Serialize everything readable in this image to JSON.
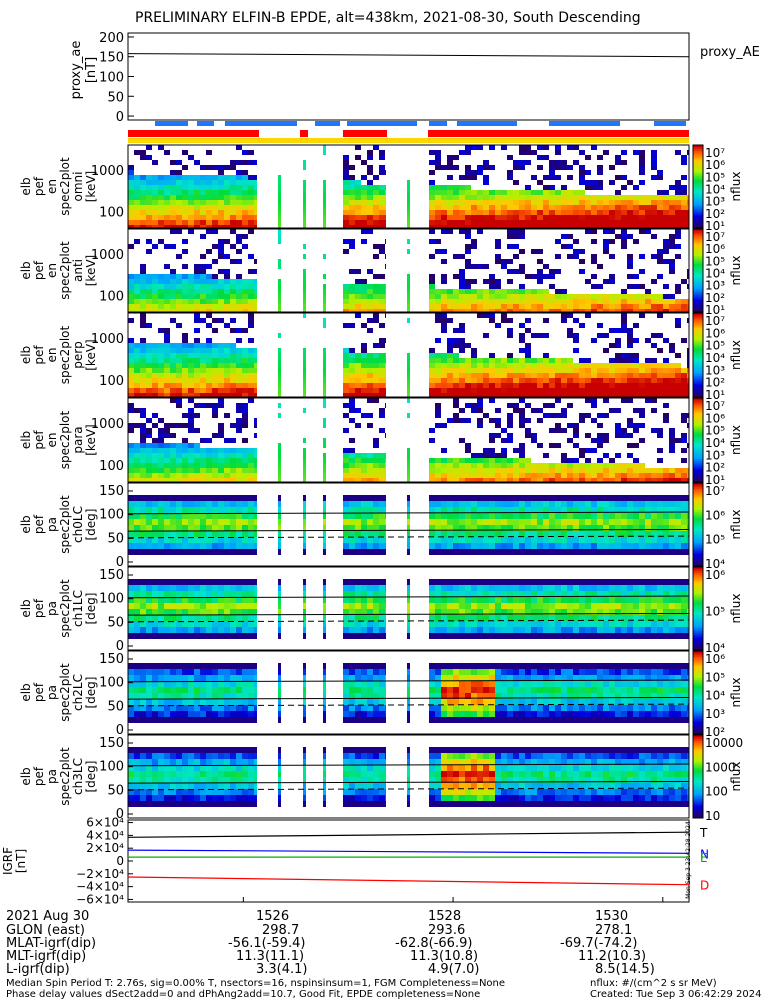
{
  "title": "PRELIMINARY ELFIN-B EPDE, alt=438km, 2021-08-30, South Descending",
  "colors": {
    "ae_line": "#000000",
    "igrf_T": "#000000",
    "igrf_N": "#0000ff",
    "igrf_E": "#00b000",
    "igrf_D": "#ff0000",
    "bar_blue": "#1f77ff",
    "bar_red": "#ff0000",
    "bar_yellow": "#ffd700"
  },
  "side_text": "Mon Sep 3 23:42:28 2024",
  "chart_data": [
    {
      "type": "line",
      "panel": "proxy_ae",
      "ylabel": [
        "proxy_ae",
        "[nT]"
      ],
      "legend": "proxy_AE",
      "ylim": [
        -10,
        210
      ],
      "yticks": [
        "200",
        "150",
        "100",
        "50",
        "0"
      ],
      "x": [
        1524.9,
        1530.25
      ],
      "values": [
        158,
        150
      ]
    },
    {
      "type": "heatmap",
      "panel": "energy-omni",
      "ylabel": [
        "elb",
        "pef",
        "en",
        "spec2plot",
        "omni",
        "[keV]"
      ],
      "yscale": "log",
      "yticks": [
        "1000",
        "100"
      ],
      "colorbar": {
        "label": "nflux",
        "ticks": [
          "10⁷",
          "10⁶",
          "10⁵",
          "10⁴",
          "10³",
          "10²",
          "10¹"
        ]
      }
    },
    {
      "type": "heatmap",
      "panel": "energy-anti",
      "ylabel": [
        "elb",
        "pef",
        "en",
        "spec2plot",
        "anti",
        "[keV]"
      ],
      "yscale": "log",
      "yticks": [
        "1000",
        "100"
      ],
      "colorbar": {
        "label": "nflux",
        "ticks": [
          "10⁷",
          "10⁶",
          "10⁵",
          "10⁴",
          "10³",
          "10²",
          "10¹"
        ]
      }
    },
    {
      "type": "heatmap",
      "panel": "energy-perp",
      "ylabel": [
        "elb",
        "pef",
        "en",
        "spec2plot",
        "perp",
        "[keV]"
      ],
      "yscale": "log",
      "yticks": [
        "1000",
        "100"
      ],
      "colorbar": {
        "label": "nflux",
        "ticks": [
          "10⁷",
          "10⁶",
          "10⁵",
          "10⁴",
          "10³",
          "10²",
          "10¹"
        ]
      }
    },
    {
      "type": "heatmap",
      "panel": "energy-para",
      "ylabel": [
        "elb",
        "pef",
        "en",
        "spec2plot",
        "para",
        "[keV]"
      ],
      "yscale": "log",
      "yticks": [
        "1000",
        "100"
      ],
      "colorbar": {
        "label": "nflux",
        "ticks": [
          "10⁷",
          "10⁶",
          "10⁵",
          "10⁴",
          "10³",
          "10²",
          "10¹"
        ]
      }
    },
    {
      "type": "heatmap",
      "panel": "pa-ch0",
      "ylabel": [
        "elb",
        "pef",
        "pa",
        "spec2plot",
        "ch0LC",
        "[deg]"
      ],
      "yticks": [
        "150",
        "100",
        "50",
        "0"
      ],
      "colorbar": {
        "label": "nflux",
        "ticks": [
          "10⁷",
          "10⁶",
          "10⁵",
          "10⁴"
        ]
      }
    },
    {
      "type": "heatmap",
      "panel": "pa-ch1",
      "ylabel": [
        "elb",
        "pef",
        "pa",
        "spec2plot",
        "ch1LC",
        "[deg]"
      ],
      "yticks": [
        "150",
        "100",
        "50",
        "0"
      ],
      "colorbar": {
        "label": "nflux",
        "ticks": [
          "10⁶",
          "10⁵",
          "10⁴"
        ]
      }
    },
    {
      "type": "heatmap",
      "panel": "pa-ch2",
      "ylabel": [
        "elb",
        "pef",
        "pa",
        "spec2plot",
        "ch2LC",
        "[deg]"
      ],
      "yticks": [
        "150",
        "100",
        "50",
        "0"
      ],
      "colorbar": {
        "label": "nflux",
        "ticks": [
          "10⁶",
          "10⁵",
          "10⁴",
          "10³",
          "10²"
        ]
      }
    },
    {
      "type": "heatmap",
      "panel": "pa-ch3",
      "ylabel": [
        "elb",
        "pef",
        "pa",
        "spec2plot",
        "ch3LC",
        "[deg]"
      ],
      "yticks": [
        "150",
        "100",
        "50",
        "0"
      ],
      "colorbar": {
        "label": "nflux",
        "ticks": [
          "10000",
          "1000",
          "100",
          "10"
        ]
      }
    },
    {
      "type": "line",
      "panel": "igrf",
      "ylabel": [
        "IGRF",
        "[nT]"
      ],
      "yticks": [
        "6×10⁴",
        "4×10⁴",
        "2×10⁴",
        "0",
        "−2×10⁴",
        "−4×10⁴",
        "−6×10⁴"
      ],
      "ylim": [
        -64000,
        64000
      ],
      "series": [
        {
          "name": "T",
          "values": [
            37000,
            45000
          ]
        },
        {
          "name": "N",
          "values": [
            17000,
            12000
          ]
        },
        {
          "name": "E",
          "values": [
            6000,
            6000
          ]
        },
        {
          "name": "D",
          "values": [
            -25000,
            -37000
          ]
        }
      ]
    }
  ],
  "footer": {
    "rows": [
      {
        "label": "2021 Aug 30",
        "v1": "1526",
        "v2": "1528",
        "v3": "1530"
      },
      {
        "label": "GLON (east)",
        "v1": "298.7",
        "v2": "293.6",
        "v3": "278.1"
      },
      {
        "label": "MLAT-igrf(dip)",
        "v1": "-56.1(-59.4)",
        "v2": "-62.8(-66.9)",
        "v3": "-69.7(-74.2)"
      },
      {
        "label": "MLT-igrf(dip)",
        "v1": "11.3(11.1)",
        "v2": "11.3(10.8)",
        "v3": "11.2(10.3)"
      },
      {
        "label": "L-igrf(dip)",
        "v1": "3.3(4.1)",
        "v2": "4.9(7.0)",
        "v3": "8.5(14.5)"
      }
    ],
    "note1": "Median Spin Period T: 2.76s, sig=0.00% T, nsectors=16, nspinsinsum=1, FGM Completeness=None",
    "note2": "Phase delay values dSect2add=0 and dPhAng2add=10.7, Good Fit, EPDE completeness=None",
    "units": "nflux: #/(cm^2 s sr MeV)",
    "created": "Created: Tue Sep  3 06:42:29 2024"
  }
}
